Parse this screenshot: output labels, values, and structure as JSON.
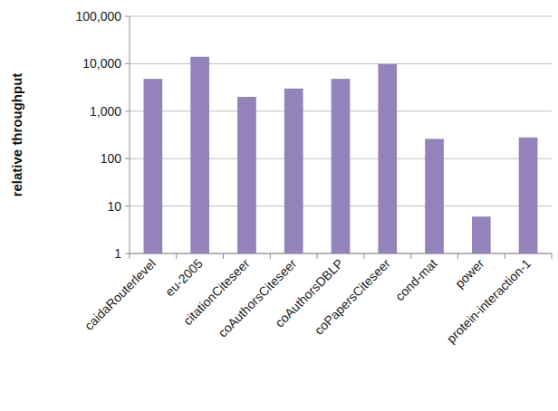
{
  "chart_data": {
    "type": "bar",
    "y_label": "relative throughput",
    "categories": [
      "caidaRouterlevel",
      "eu-2005",
      "citationCiteseer",
      "coAuthorsCiteseer",
      "coAuthorsDBLP",
      "coPapersCiteseer",
      "cond-mat",
      "power",
      "protein-interaction-1"
    ],
    "values": [
      4800,
      14000,
      2000,
      3000,
      4800,
      9800,
      260,
      6,
      280
    ],
    "color": "#9483bb",
    "log": "y",
    "grid": true,
    "ylim": [
      1,
      100000
    ],
    "yticks": [
      1,
      10,
      100,
      {
        "value": 1000,
        "label": "1,000"
      },
      {
        "value": 10000,
        "label": "10,000"
      },
      {
        "value": 100000,
        "label": "100,000"
      }
    ]
  }
}
